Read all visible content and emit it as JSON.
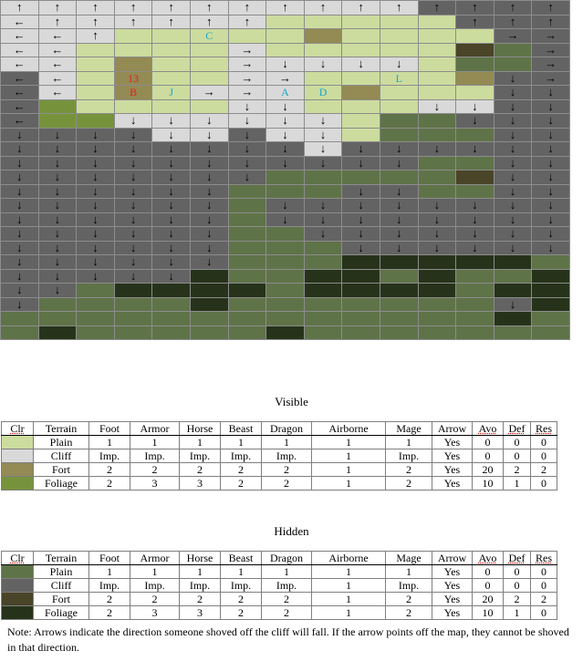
{
  "colors": {
    "P": "#ccdc9e",
    "C": "#d9d9d9",
    "F": "#948a54",
    "G": "#76933c",
    "p": "#5f7348",
    "c": "#636363",
    "f": "#4a4429",
    "g": "#26331a"
  },
  "arrow_glyphs": {
    "u": "↑",
    "d": "↓",
    "l": "←",
    "r": "→"
  },
  "map": {
    "columns": 15,
    "rows": 24,
    "cells": [
      "Cu Cu Cu Cu Cu Cu Cu Cu Cu Cu Cu cu cu cu cu",
      "Cl Cu Cu Cu Cu Cu Cu P P P P P cu cu cu",
      "Cl Cl Cu P P P P P F P P P P cr cr",
      "Cl Cl P P P P Cr P P P P P f p cr",
      "Cl Cl P F P P Cr Cd Cd Cd Cd P p p cr",
      "cl Cl P F P P Cr Cr P P P P F cd cr",
      "cl Cl P F P Cr Cr Cr P F P P P cd cd",
      "cl G P P P P Cd Cd P P P Cd Cd cd cd",
      "cl G G Cd Cd Cd Cd Cd Cd P p p cd cd cd",
      "cd cd cd cd Cd Cd cd Cd Cd P p p p cd cd",
      "cd cd cd cd cd cd cd cd Cd cd cd cd cd cd cd",
      "cd cd cd cd cd cd cd cd cd cd cd p p cd cd",
      "cd cd cd cd cd cd cd p p p p p f cd cd",
      "cd cd cd cd cd cd p p p cd cd p p cd cd",
      "cd cd cd cd cd cd p cd cd cd cd cd cd cd cd",
      "cd cd cd cd cd cd p cd cd cd cd cd cd cd cd",
      "cd cd cd cd cd cd p p cd cd cd cd cd cd cd",
      "cd cd cd cd cd cd p p p cd cd cd cd cd cd",
      "cd cd cd cd cd cd p p p g g g g g p",
      "cd cd cd cd cd g p p g g p g p p g",
      "cd cd p g g g g p g g g g p g g",
      "cd p p p p g p p p p p p p cd g",
      "p p p p p p p p p p p p p g p",
      "p g p p p p p g p p p p p p p"
    ],
    "labels": [
      {
        "row": 2,
        "col": 5,
        "text": "C"
      },
      {
        "row": 5,
        "col": 3,
        "text": "13"
      },
      {
        "row": 6,
        "col": 3,
        "text": "B"
      },
      {
        "row": 6,
        "col": 4,
        "text": "J"
      },
      {
        "row": 6,
        "col": 7,
        "text": "A"
      },
      {
        "row": 6,
        "col": 8,
        "text": "D"
      },
      {
        "row": 5,
        "col": 10,
        "text": "L"
      }
    ]
  },
  "visible": {
    "caption": "Visible",
    "headers": [
      "Clr",
      "Terrain",
      "Foot",
      "Armor",
      "Horse",
      "Beast",
      "Dragon",
      "Airborne",
      "Mage",
      "Arrow",
      "Avo",
      "Def",
      "Res"
    ],
    "rows": [
      {
        "color": "#ccdc9e",
        "cells": [
          "Plain",
          "1",
          "1",
          "1",
          "1",
          "1",
          "1",
          "1",
          "Yes",
          "0",
          "0",
          "0"
        ]
      },
      {
        "color": "#d9d9d9",
        "cells": [
          "Cliff",
          "Imp.",
          "Imp.",
          "Imp.",
          "Imp.",
          "Imp.",
          "1",
          "Imp.",
          "Yes",
          "0",
          "0",
          "0"
        ]
      },
      {
        "color": "#948a54",
        "cells": [
          "Fort",
          "2",
          "2",
          "2",
          "2",
          "2",
          "1",
          "2",
          "Yes",
          "20",
          "2",
          "2"
        ]
      },
      {
        "color": "#76933c",
        "cells": [
          "Foliage",
          "2",
          "3",
          "3",
          "2",
          "2",
          "1",
          "2",
          "Yes",
          "10",
          "1",
          "0"
        ]
      }
    ]
  },
  "hidden": {
    "caption": "Hidden",
    "headers": [
      "Clr",
      "Terrain",
      "Foot",
      "Armor",
      "Horse",
      "Beast",
      "Dragon",
      "Airborne",
      "Mage",
      "Arrow",
      "Avo",
      "Def",
      "Res"
    ],
    "rows": [
      {
        "color": "#5f7348",
        "cells": [
          "Plain",
          "1",
          "1",
          "1",
          "1",
          "1",
          "1",
          "1",
          "Yes",
          "0",
          "0",
          "0"
        ]
      },
      {
        "color": "#636363",
        "cells": [
          "Cliff",
          "Imp.",
          "Imp.",
          "Imp.",
          "Imp.",
          "Imp.",
          "1",
          "Imp.",
          "Yes",
          "0",
          "0",
          "0"
        ]
      },
      {
        "color": "#4a4429",
        "cells": [
          "Fort",
          "2",
          "2",
          "2",
          "2",
          "2",
          "1",
          "2",
          "Yes",
          "20",
          "2",
          "2"
        ]
      },
      {
        "color": "#26331a",
        "cells": [
          "Foliage",
          "2",
          "3",
          "3",
          "2",
          "2",
          "1",
          "2",
          "Yes",
          "10",
          "1",
          "0"
        ]
      }
    ]
  },
  "note": "Note: Arrows indicate the direction someone shoved off the cliff will fall. If the arrow points off the map, they cannot be shoved in that direction."
}
